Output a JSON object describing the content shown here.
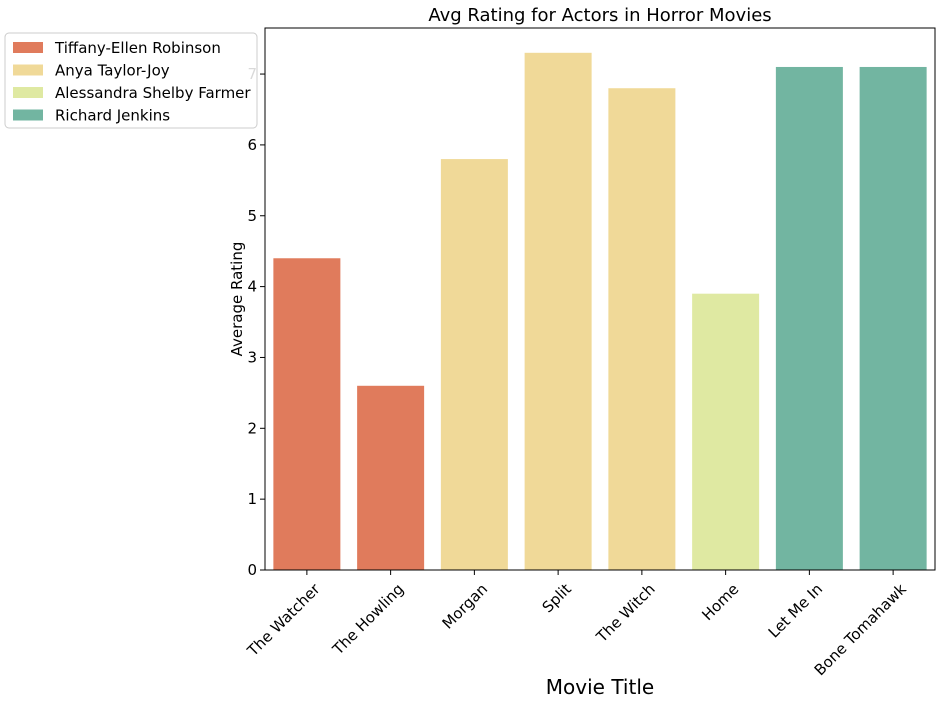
{
  "chart_data": {
    "type": "bar",
    "title": "Avg Rating for Actors in Horror Movies",
    "xlabel": "Movie Title",
    "ylabel": "Average Rating",
    "ylim": [
      0,
      7.65
    ],
    "yticks": [
      0,
      1,
      2,
      3,
      4,
      5,
      6,
      7
    ],
    "grid": false,
    "legend_position": "outside-left-top",
    "categories": [
      "The Watcher",
      "The Howling",
      "Morgan",
      "Split",
      "The Witch",
      "Home",
      "Let Me In",
      "Bone Tomahawk"
    ],
    "values": [
      4.4,
      2.6,
      5.8,
      7.3,
      6.8,
      3.9,
      7.1,
      7.1
    ],
    "bar_actor": [
      "Tiffany-Ellen Robinson",
      "Tiffany-Ellen Robinson",
      "Anya Taylor-Joy",
      "Anya Taylor-Joy",
      "Anya Taylor-Joy",
      "Alessandra Shelby Farmer",
      "Richard Jenkins",
      "Richard Jenkins"
    ],
    "series": [
      {
        "name": "Tiffany-Ellen Robinson",
        "color": "#e07b5c"
      },
      {
        "name": "Anya Taylor-Joy",
        "color": "#f0d998"
      },
      {
        "name": "Alessandra Shelby Farmer",
        "color": "#dfe9a2"
      },
      {
        "name": "Richard Jenkins",
        "color": "#72b5a1"
      }
    ]
  }
}
